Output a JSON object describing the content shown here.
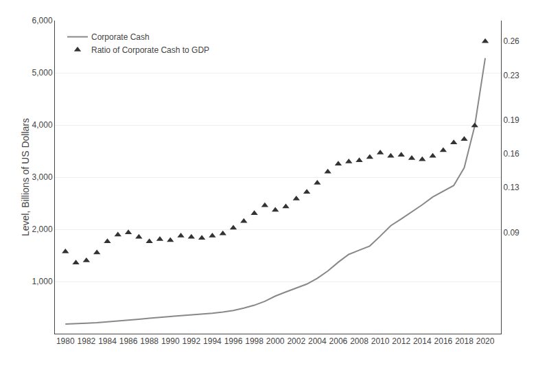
{
  "chart_data": {
    "type": "line",
    "x": [
      1980,
      1981,
      1982,
      1983,
      1984,
      1985,
      1986,
      1987,
      1988,
      1989,
      1990,
      1991,
      1992,
      1993,
      1994,
      1995,
      1996,
      1997,
      1998,
      1999,
      2000,
      2001,
      2002,
      2003,
      2004,
      2005,
      2006,
      2007,
      2008,
      2009,
      2010,
      2011,
      2012,
      2013,
      2014,
      2015,
      2016,
      2017,
      2018,
      2019,
      2020
    ],
    "xlim": [
      1979,
      2021.5
    ],
    "xticks": [
      1980,
      1982,
      1984,
      1986,
      1988,
      1990,
      1992,
      1994,
      1996,
      1998,
      2000,
      2002,
      2004,
      2006,
      2008,
      2010,
      2012,
      2014,
      2016,
      2018,
      2020
    ],
    "ylabel": "Level, Billions of US Dollars",
    "ylim": [
      0,
      6000
    ],
    "yticks": [
      {
        "value": 1000,
        "label": "1,000"
      },
      {
        "value": 2000,
        "label": "2,000"
      },
      {
        "value": 3000,
        "label": "3,000"
      },
      {
        "value": 4000,
        "label": "4,000"
      },
      {
        "value": 5000,
        "label": "5,000"
      },
      {
        "value": 6000,
        "label": "6,000"
      }
    ],
    "y2lim": [
      0,
      0.2785
    ],
    "y2ticks": [
      0.09,
      0.13,
      0.16,
      0.19,
      0.23,
      0.26
    ],
    "grid": true,
    "legend": "upper left",
    "series": [
      {
        "name": "Corporate Cash",
        "type": "line",
        "color": "#888888",
        "values": [
          185,
          190,
          200,
          210,
          225,
          240,
          260,
          275,
          295,
          315,
          330,
          345,
          360,
          375,
          390,
          415,
          445,
          490,
          545,
          620,
          720,
          800,
          870,
          950,
          1060,
          1200,
          1370,
          1520,
          1600,
          1680,
          1870,
          2070,
          2200,
          2330,
          2470,
          2620,
          2730,
          2840,
          3180,
          3980,
          5280
        ]
      },
      {
        "name": "Ratio of Corporate Cash to GDP",
        "type": "scatter",
        "marker": "triangle",
        "color": "#333333",
        "axis": "y2",
        "values": [
          0.073,
          0.063,
          0.065,
          0.072,
          0.082,
          0.088,
          0.09,
          0.086,
          0.082,
          0.084,
          0.083,
          0.087,
          0.086,
          0.085,
          0.087,
          0.089,
          0.094,
          0.1,
          0.107,
          0.114,
          0.11,
          0.113,
          0.12,
          0.126,
          0.134,
          0.144,
          0.151,
          0.153,
          0.154,
          0.157,
          0.161,
          0.158,
          0.159,
          0.156,
          0.155,
          0.158,
          0.163,
          0.17,
          0.173,
          0.185,
          0.26
        ]
      }
    ]
  }
}
